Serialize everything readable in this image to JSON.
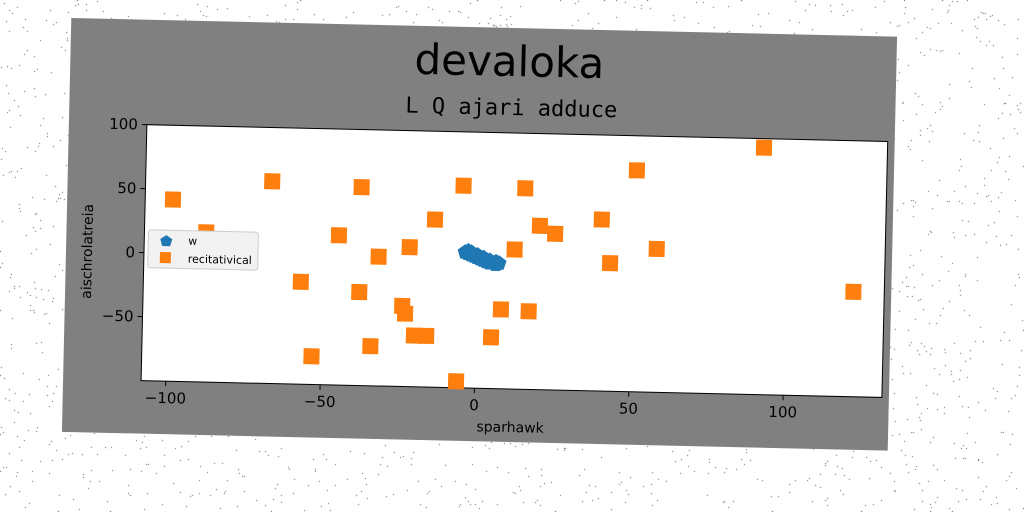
{
  "chart_data": {
    "type": "scatter",
    "title": "devaloka",
    "subtitle": "L Q ajari adduce",
    "xlabel": "sparhawk",
    "ylabel": "aischrolatreia",
    "xlim": [
      -108,
      132
    ],
    "ylim": [
      -100,
      100
    ],
    "xticks": [
      -100,
      -50,
      0,
      50,
      100
    ],
    "yticks": [
      100,
      50,
      0,
      -50
    ],
    "grid": false,
    "legend_position": "center-left",
    "colors": {
      "background": "#808080",
      "plot_area": "#ffffff",
      "w": "#1f77b4",
      "recitativical": "#ff7f0e"
    },
    "series": [
      {
        "name": "w",
        "marker": "pentagon",
        "points": [
          [
            -4,
            6
          ],
          [
            -3,
            5
          ],
          [
            -2,
            4
          ],
          [
            -1,
            3
          ],
          [
            0,
            2
          ],
          [
            1,
            1
          ],
          [
            2,
            0
          ],
          [
            3,
            -1
          ],
          [
            4,
            -2
          ],
          [
            5,
            -2
          ],
          [
            6,
            -3
          ],
          [
            -3,
            7
          ],
          [
            -2,
            6
          ],
          [
            0,
            4
          ],
          [
            2,
            2
          ],
          [
            4,
            0
          ],
          [
            6,
            -1
          ],
          [
            7,
            -2
          ]
        ]
      },
      {
        "name": "recitativical",
        "marker": "square",
        "points": [
          [
            -99,
            42
          ],
          [
            -88,
            17
          ],
          [
            -67,
            58
          ],
          [
            -57,
            -20
          ],
          [
            -53,
            -78
          ],
          [
            -45,
            17
          ],
          [
            -38,
            55
          ],
          [
            -38,
            -27
          ],
          [
            -34,
            -69
          ],
          [
            -32,
            1
          ],
          [
            -24,
            -37
          ],
          [
            -23,
            -43
          ],
          [
            -22,
            9
          ],
          [
            -20,
            -60
          ],
          [
            -16,
            -60
          ],
          [
            -14,
            31
          ],
          [
            -5,
            58
          ],
          [
            -6,
            -95
          ],
          [
            5,
            -60
          ],
          [
            8,
            -38
          ],
          [
            12,
            9
          ],
          [
            15,
            57
          ],
          [
            17,
            -39
          ],
          [
            20,
            28
          ],
          [
            25,
            22
          ],
          [
            40,
            34
          ],
          [
            43,
            0
          ],
          [
            51,
            73
          ],
          [
            58,
            12
          ],
          [
            92,
            93
          ],
          [
            122,
            -18
          ]
        ]
      }
    ]
  }
}
